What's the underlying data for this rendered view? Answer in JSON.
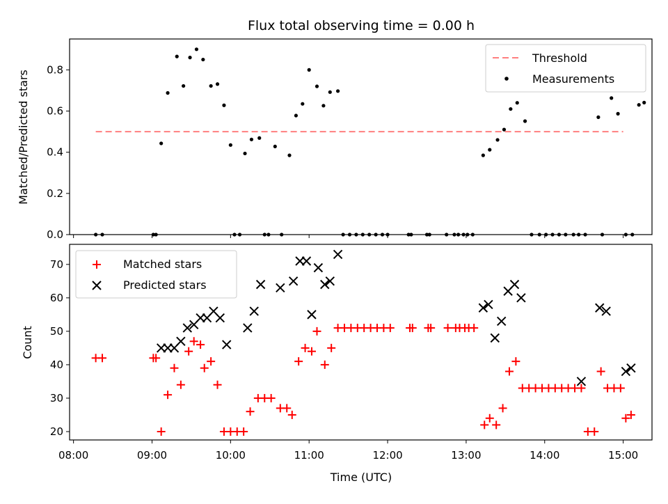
{
  "chart_data": {
    "title": "Flux total observing time = 0.00 h",
    "shared_x": {
      "label": "Time (UTC)",
      "range": [
        "07:57",
        "15:22"
      ],
      "ticks": [
        "08:00",
        "09:00",
        "10:00",
        "11:00",
        "12:00",
        "13:00",
        "14:00",
        "15:00"
      ]
    },
    "panels": [
      {
        "id": "ratio",
        "type": "scatter",
        "ylabel": "Matched/Predicted stars",
        "ylim": [
          0,
          0.95
        ],
        "yticks": [
          "0.0",
          "0.2",
          "0.4",
          "0.6",
          "0.8"
        ],
        "legend_position": "top-right",
        "grid": false,
        "threshold": {
          "name": "Threshold",
          "value": 0.5,
          "x_start": "08:17",
          "x_end": "15:00",
          "color": "#ff7f7f"
        },
        "series": [
          {
            "name": "Measurements",
            "color": "#000000",
            "points": [
              [
                "08:17",
                0
              ],
              [
                "08:22",
                0
              ],
              [
                "09:01",
                0
              ],
              [
                "09:03",
                0
              ],
              [
                "09:07",
                0.443
              ],
              [
                "09:12",
                0.688
              ],
              [
                "09:19",
                0.865
              ],
              [
                "09:24",
                0.722
              ],
              [
                "09:29",
                0.86
              ],
              [
                "09:34",
                0.9
              ],
              [
                "09:39",
                0.85
              ],
              [
                "09:45",
                0.722
              ],
              [
                "09:50",
                0.731
              ],
              [
                "09:55",
                0.628
              ],
              [
                "10:00",
                0.435
              ],
              [
                "10:03",
                0
              ],
              [
                "10:07",
                0
              ],
              [
                "10:11",
                0.394
              ],
              [
                "10:16",
                0.462
              ],
              [
                "10:22",
                0.469
              ],
              [
                "10:26",
                0
              ],
              [
                "10:29",
                0
              ],
              [
                "10:34",
                0.428
              ],
              [
                "10:39",
                0
              ],
              [
                "10:45",
                0.385
              ],
              [
                "10:50",
                0.578
              ],
              [
                "10:55",
                0.635
              ],
              [
                "11:00",
                0.8
              ],
              [
                "11:06",
                0.72
              ],
              [
                "11:11",
                0.626
              ],
              [
                "11:16",
                0.692
              ],
              [
                "11:22",
                0.697
              ],
              [
                "11:26",
                0
              ],
              [
                "11:31",
                0
              ],
              [
                "11:36",
                0
              ],
              [
                "11:41",
                0
              ],
              [
                "11:46",
                0
              ],
              [
                "11:51",
                0
              ],
              [
                "11:56",
                0
              ],
              [
                "12:00",
                0
              ],
              [
                "12:16",
                0
              ],
              [
                "12:18",
                0
              ],
              [
                "12:30",
                0
              ],
              [
                "12:32",
                0
              ],
              [
                "12:45",
                0
              ],
              [
                "12:51",
                0
              ],
              [
                "12:54",
                0
              ],
              [
                "12:58",
                0
              ],
              [
                "13:01",
                0
              ],
              [
                "13:05",
                0
              ],
              [
                "13:13",
                0.385
              ],
              [
                "13:18",
                0.412
              ],
              [
                "13:24",
                0.46
              ],
              [
                "13:29",
                0.51
              ],
              [
                "13:34",
                0.61
              ],
              [
                "13:39",
                0.64
              ],
              [
                "13:45",
                0.551
              ],
              [
                "13:50",
                0
              ],
              [
                "13:56",
                0
              ],
              [
                "14:01",
                0
              ],
              [
                "14:06",
                0
              ],
              [
                "14:11",
                0
              ],
              [
                "14:16",
                0
              ],
              [
                "14:22",
                0
              ],
              [
                "14:26",
                0
              ],
              [
                "14:31",
                0
              ],
              [
                "14:41",
                0.57
              ],
              [
                "14:44",
                0
              ],
              [
                "14:51",
                0.663
              ],
              [
                "14:56",
                0.587
              ],
              [
                "15:02",
                0
              ],
              [
                "15:07",
                0
              ],
              [
                "15:12",
                0.63
              ],
              [
                "15:16",
                0.641
              ]
            ]
          }
        ]
      },
      {
        "id": "counts",
        "type": "scatter",
        "ylabel": "Count",
        "ylim": [
          17.5,
          76.0
        ],
        "yticks": [
          "20",
          "30",
          "40",
          "50",
          "60",
          "70"
        ],
        "legend_position": "top-left",
        "grid": false,
        "series": [
          {
            "name": "Matched stars",
            "marker": "plus",
            "color": "#ff0000",
            "points": [
              [
                "08:17",
                42
              ],
              [
                "08:22",
                42
              ],
              [
                "09:01",
                42
              ],
              [
                "09:03",
                42
              ],
              [
                "09:07",
                20
              ],
              [
                "09:12",
                31
              ],
              [
                "09:17",
                39
              ],
              [
                "09:22",
                34
              ],
              [
                "09:28",
                44
              ],
              [
                "09:32",
                47
              ],
              [
                "09:37",
                46
              ],
              [
                "09:40",
                39
              ],
              [
                "09:45",
                41
              ],
              [
                "09:50",
                34
              ],
              [
                "09:55",
                20
              ],
              [
                "10:00",
                20
              ],
              [
                "10:05",
                20
              ],
              [
                "10:10",
                20
              ],
              [
                "10:15",
                26
              ],
              [
                "10:21",
                30
              ],
              [
                "10:26",
                30
              ],
              [
                "10:31",
                30
              ],
              [
                "10:38",
                27
              ],
              [
                "10:43",
                27
              ],
              [
                "10:47",
                25
              ],
              [
                "10:52",
                41
              ],
              [
                "10:57",
                45
              ],
              [
                "11:02",
                44
              ],
              [
                "11:06",
                50
              ],
              [
                "11:12",
                40
              ],
              [
                "11:17",
                45
              ],
              [
                "11:22",
                51
              ],
              [
                "11:27",
                51
              ],
              [
                "11:32",
                51
              ],
              [
                "11:37",
                51
              ],
              [
                "11:42",
                51
              ],
              [
                "11:47",
                51
              ],
              [
                "11:52",
                51
              ],
              [
                "11:57",
                51
              ],
              [
                "12:02",
                51
              ],
              [
                "12:17",
                51
              ],
              [
                "12:19",
                51
              ],
              [
                "12:31",
                51
              ],
              [
                "12:33",
                51
              ],
              [
                "12:46",
                51
              ],
              [
                "12:52",
                51
              ],
              [
                "12:55",
                51
              ],
              [
                "12:59",
                51
              ],
              [
                "13:02",
                51
              ],
              [
                "13:06",
                51
              ],
              [
                "13:14",
                22
              ],
              [
                "13:18",
                24
              ],
              [
                "13:23",
                22
              ],
              [
                "13:28",
                27
              ],
              [
                "13:33",
                38
              ],
              [
                "13:38",
                41
              ],
              [
                "13:43",
                33
              ],
              [
                "13:48",
                33
              ],
              [
                "13:53",
                33
              ],
              [
                "13:58",
                33
              ],
              [
                "14:03",
                33
              ],
              [
                "14:08",
                33
              ],
              [
                "14:13",
                33
              ],
              [
                "14:18",
                33
              ],
              [
                "14:23",
                33
              ],
              [
                "14:28",
                33
              ],
              [
                "14:33",
                20
              ],
              [
                "14:38",
                20
              ],
              [
                "14:43",
                38
              ],
              [
                "14:48",
                33
              ],
              [
                "14:53",
                33
              ],
              [
                "14:58",
                33
              ],
              [
                "15:02",
                24
              ],
              [
                "15:06",
                25
              ]
            ]
          },
          {
            "name": "Predicted stars",
            "marker": "x",
            "color": "#000000",
            "points": [
              [
                "09:07",
                45
              ],
              [
                "09:12",
                45
              ],
              [
                "09:17",
                45
              ],
              [
                "09:22",
                47
              ],
              [
                "09:27",
                51
              ],
              [
                "09:32",
                52
              ],
              [
                "09:37",
                54
              ],
              [
                "09:42",
                54
              ],
              [
                "09:47",
                56
              ],
              [
                "09:52",
                54
              ],
              [
                "09:57",
                46
              ],
              [
                "10:13",
                51
              ],
              [
                "10:18",
                56
              ],
              [
                "10:23",
                64
              ],
              [
                "10:38",
                63
              ],
              [
                "10:48",
                65
              ],
              [
                "10:53",
                71
              ],
              [
                "10:58",
                71
              ],
              [
                "11:02",
                55
              ],
              [
                "11:07",
                69
              ],
              [
                "11:12",
                64
              ],
              [
                "11:16",
                65
              ],
              [
                "11:22",
                73
              ],
              [
                "13:13",
                57
              ],
              [
                "13:17",
                58
              ],
              [
                "13:22",
                48
              ],
              [
                "13:27",
                53
              ],
              [
                "13:32",
                62
              ],
              [
                "13:37",
                64
              ],
              [
                "13:42",
                60
              ],
              [
                "14:28",
                35
              ],
              [
                "14:42",
                57
              ],
              [
                "14:47",
                56
              ],
              [
                "15:02",
                38
              ],
              [
                "15:06",
                39
              ]
            ]
          }
        ]
      }
    ]
  }
}
